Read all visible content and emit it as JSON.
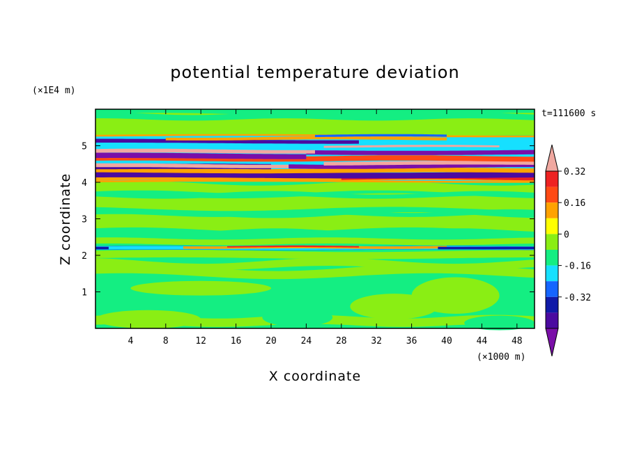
{
  "chart_data": {
    "type": "heatmap",
    "title": "potential temperature deviation",
    "xlabel": "X coordinate",
    "ylabel": "Z coordinate",
    "x_unit": "(×1000 m)",
    "y_unit": "(×1E4 m)",
    "time_label": "t=111600 s",
    "xlim": [
      0,
      50
    ],
    "ylim": [
      0,
      6
    ],
    "x_ticks": [
      "4",
      "8",
      "12",
      "16",
      "20",
      "24",
      "28",
      "32",
      "36",
      "40",
      "44",
      "48"
    ],
    "y_ticks": [
      "1",
      "2",
      "3",
      "4",
      "5"
    ],
    "colorbar": {
      "levels": [
        -0.4,
        -0.32,
        -0.24,
        -0.16,
        -0.08,
        0,
        0.08,
        0.16,
        0.24,
        0.32,
        0.4
      ],
      "tick_labels": [
        "0.32",
        "0.16",
        "0",
        "-0.16",
        "-0.32"
      ],
      "colors": [
        "#7a0fa8",
        "#4b0aa0",
        "#101aa8",
        "#1565ff",
        "#16e0ff",
        "#14ee82",
        "#8aee14",
        "#ffff00",
        "#ffa200",
        "#ff4a14",
        "#ee2222",
        "#f0a8a0"
      ]
    },
    "bands": [
      {
        "z_center": 5.15,
        "value": -0.3
      },
      {
        "z_center": 4.85,
        "value": 0.45
      },
      {
        "z_center": 4.7,
        "value": -0.45
      },
      {
        "z_center": 4.45,
        "value": 0.45
      },
      {
        "z_center": 4.2,
        "value": -0.35
      },
      {
        "z_center": 2.2,
        "value": -0.2
      }
    ]
  }
}
